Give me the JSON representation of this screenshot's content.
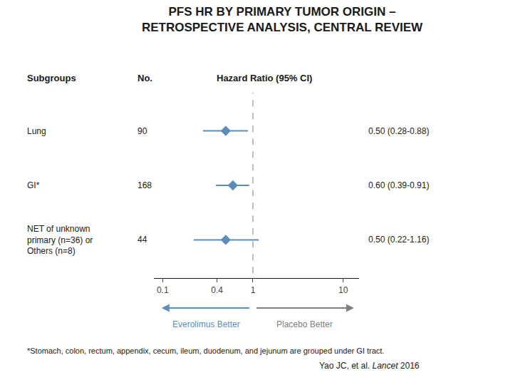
{
  "chart_data": {
    "type": "forest",
    "title": "PFS HR BY PRIMARY TUMOR ORIGIN –\nRETROSPECTIVE ANALYSIS, CENTRAL REVIEW",
    "column_labels": [
      "Subgroups",
      "No.",
      "Hazard Ratio (95% CI)"
    ],
    "categories": [
      "Lung",
      "GI*",
      "NET of unknown\nprimary (n=36) or\nOthers (n=8)"
    ],
    "n": [
      90,
      168,
      44
    ],
    "values": [
      0.5,
      0.6,
      0.5
    ],
    "ci_low": [
      0.28,
      0.39,
      0.22
    ],
    "ci_high": [
      0.88,
      0.91,
      1.16
    ],
    "value_labels": [
      "0.50 (0.28-0.88)",
      "0.60 (0.39-0.91)",
      "0.50 (0.22-1.16)"
    ],
    "ref_line": {
      "value": 1,
      "color": "#aaaaaa",
      "line_style": "dashed"
    },
    "xlim": [
      0.08,
      15
    ],
    "xticks": [
      0.1,
      0.4,
      1,
      10
    ],
    "log": "x",
    "grid": false,
    "tick_labels": "x",
    "marker": "diamond",
    "color": "#5b8db8",
    "annotations": [
      {
        "text": "Everolimus Better",
        "color": "#5b8db8",
        "arrow": "left"
      },
      {
        "text": "Placebo Better",
        "color": "#808080",
        "arrow": "right"
      }
    ],
    "footnote": "*Stomach, colon, rectum, appendix, cecum, ileum, duodenum, and jejunum are grouped under GI tract.",
    "citation": [
      "Yao JC, et al. ",
      "Lancet",
      " 2016"
    ]
  }
}
